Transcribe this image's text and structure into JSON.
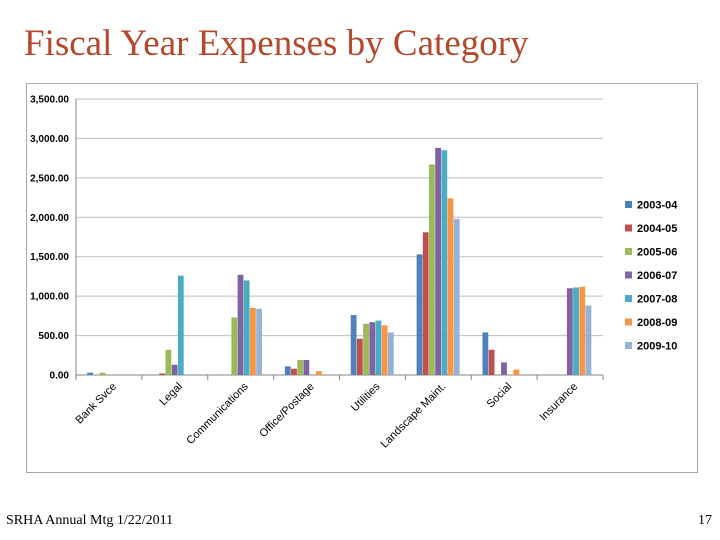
{
  "slide": {
    "title": "Fiscal Year Expenses by Category",
    "footer": "SRHA Annual Mtg 1/22/2011",
    "page_number": "17"
  },
  "chart_data": {
    "type": "bar",
    "title": "",
    "xlabel": "",
    "ylabel": "",
    "ylim": [
      0,
      3500
    ],
    "yticks": [
      0,
      500,
      1000,
      1500,
      2000,
      2500,
      3000,
      3500
    ],
    "ytick_labels": [
      "0.00",
      "500.00",
      "1,000.00",
      "1,500.00",
      "2,000.00",
      "2,500.00",
      "3,000.00",
      "3,500.00"
    ],
    "grid": true,
    "legend_position": "right",
    "categories": [
      "Bank Svce",
      "Legal",
      "Communications",
      "Office/Postage",
      "Utilities",
      "Landscape Maint.",
      "Social",
      "Insurance"
    ],
    "series": [
      {
        "name": "2003-04",
        "color": "#4f81bd",
        "values": [
          30,
          0,
          0,
          110,
          760,
          1530,
          540,
          0
        ]
      },
      {
        "name": "2004-05",
        "color": "#c0504d",
        "values": [
          0,
          20,
          0,
          80,
          460,
          1810,
          320,
          0
        ]
      },
      {
        "name": "2005-06",
        "color": "#9bbb59",
        "values": [
          30,
          320,
          730,
          190,
          650,
          2670,
          0,
          0
        ]
      },
      {
        "name": "2006-07",
        "color": "#8064a2",
        "values": [
          0,
          130,
          1270,
          190,
          670,
          2880,
          160,
          1100
        ]
      },
      {
        "name": "2007-08",
        "color": "#4bacc6",
        "values": [
          0,
          1260,
          1200,
          0,
          690,
          2850,
          0,
          1110
        ]
      },
      {
        "name": "2008-09",
        "color": "#f79646",
        "values": [
          0,
          0,
          850,
          50,
          630,
          2240,
          70,
          1120
        ]
      },
      {
        "name": "2009-10",
        "color": "#95b3d7",
        "values": [
          0,
          0,
          840,
          0,
          540,
          1980,
          0,
          880
        ]
      }
    ]
  }
}
